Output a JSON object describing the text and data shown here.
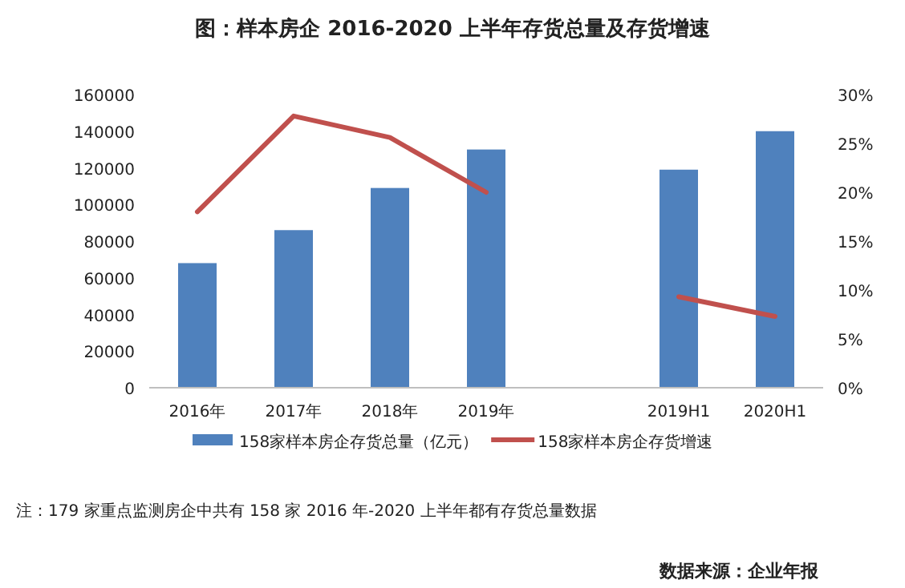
{
  "chart_data": {
    "type": "bar",
    "title": "图：样本房企 2016-2020 上半年存货总量及存货增速",
    "categories": [
      "2016年",
      "2017年",
      "2018年",
      "2019年",
      null,
      "2019H1",
      "2020H1"
    ],
    "series": [
      {
        "name": "158家样本房企存货总量（亿元）",
        "color": "#4f81bd",
        "values": [
          68000,
          86000,
          109000,
          130000,
          null,
          119000,
          140000
        ]
      },
      {
        "name": "158家样本房企存货增速",
        "type": "line",
        "axis": "y2",
        "color": "#c0504d",
        "values": [
          18,
          27.8,
          25.6,
          20,
          null,
          9.3,
          7.3
        ]
      }
    ],
    "ylim": [
      0,
      160000
    ],
    "yticks": [
      0,
      20000,
      40000,
      60000,
      80000,
      100000,
      120000,
      140000,
      160000
    ],
    "y2lim": [
      0,
      30
    ],
    "y2ticks": [
      {
        "value": 0,
        "label": "0%"
      },
      {
        "value": 5,
        "label": "5%"
      },
      {
        "value": 10,
        "label": "10%"
      },
      {
        "value": 15,
        "label": "15%"
      },
      {
        "value": 20,
        "label": "20%"
      },
      {
        "value": 25,
        "label": "25%"
      },
      {
        "value": 30,
        "label": "30%"
      }
    ],
    "legend": "bottom",
    "grid": false,
    "annotations": [
      "注：179 家重点监测房企中共有 158 家 2016 年-2020 上半年都有存货总量数据",
      "数据来源：企业年报"
    ]
  }
}
